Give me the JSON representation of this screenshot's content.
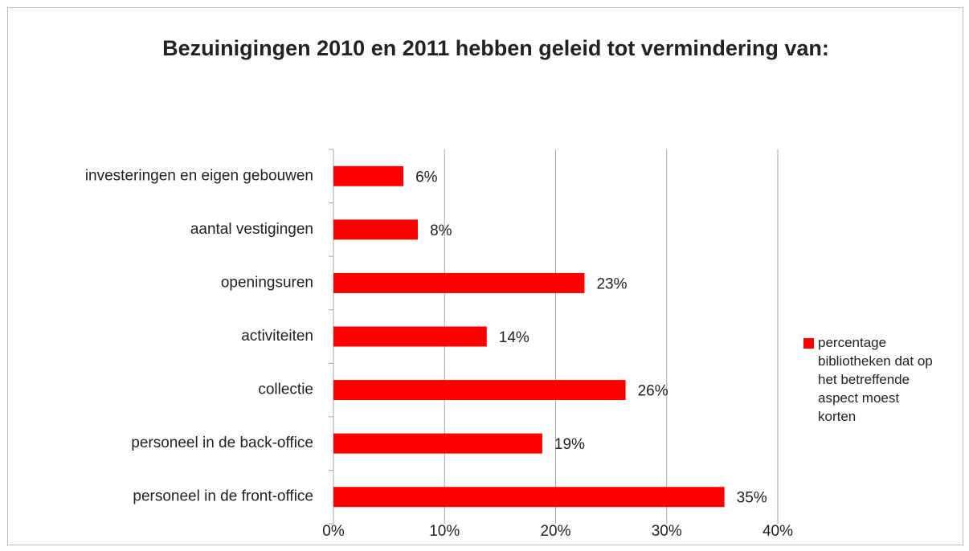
{
  "chart_data": {
    "type": "bar",
    "orientation": "horizontal",
    "title": "Bezuinigingen 2010 en 2011 hebben geleid tot vermindering van:",
    "categories": [
      "investeringen en eigen gebouwen",
      "aantal vestigingen",
      "openingsuren",
      "activiteiten",
      "collectie",
      "personeel in de back-office",
      "personeel in de front-office"
    ],
    "series": [
      {
        "name": "percentage bibliotheken dat op het betreffende aspect moest korten",
        "color": "#ff0000",
        "values": [
          6.3,
          7.6,
          22.6,
          13.8,
          26.3,
          18.8,
          35.2
        ],
        "value_labels": [
          "6%",
          "8%",
          "23%",
          "14%",
          "26%",
          "19%",
          "35%"
        ]
      }
    ],
    "xlim": [
      0,
      40
    ],
    "xticks": [
      {
        "value": 0,
        "label": "0%"
      },
      {
        "value": 10,
        "label": "10%"
      },
      {
        "value": 20,
        "label": "20%"
      },
      {
        "value": 30,
        "label": "30%"
      },
      {
        "value": 40,
        "label": "40%"
      }
    ],
    "grid": true,
    "legend": "right"
  }
}
